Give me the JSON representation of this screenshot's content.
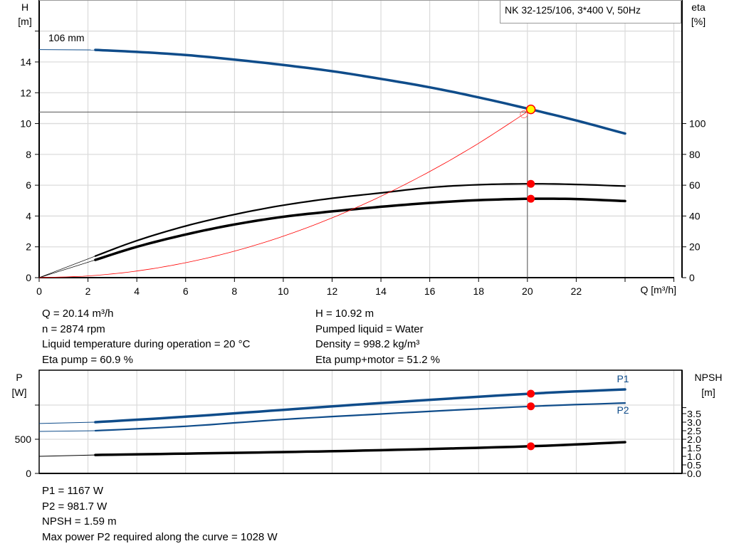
{
  "chart_data": [
    {
      "type": "line",
      "title": "NK 32-125/106, 3*400 V, 50Hz",
      "xlabel": "Q [m³/h]",
      "ylabel": "H\n[m]",
      "ylabel_lines": [
        "H",
        "[m]"
      ],
      "y2label_lines": [
        "eta",
        "[%]"
      ],
      "xlim": [
        0,
        26
      ],
      "ylim": [
        0,
        18
      ],
      "y2lim": [
        0,
        180
      ],
      "xticks": [
        "0",
        "2",
        "4",
        "6",
        "8",
        "10",
        "12",
        "14",
        "16",
        "18",
        "20",
        "22"
      ],
      "yticks": [
        "0",
        "2",
        "4",
        "6",
        "8",
        "10",
        "12",
        "14"
      ],
      "y2ticks": [
        "0",
        "20",
        "40",
        "60",
        "80",
        "100"
      ],
      "grid": true,
      "curve_label": "106 mm",
      "series": [
        {
          "id": "head",
          "axis": "H",
          "color": "#0f4c8a",
          "x": [
            2.3,
            4,
            6,
            8,
            10,
            12,
            14,
            16,
            18,
            20.14,
            22,
            24
          ],
          "y": [
            14.78,
            14.65,
            14.45,
            14.15,
            13.8,
            13.4,
            12.9,
            12.35,
            11.7,
            10.92,
            10.2,
            9.35
          ],
          "extrapolated_start": [
            0,
            14.8
          ]
        },
        {
          "id": "eta-pump",
          "axis": "eta",
          "color": "#000000",
          "x": [
            2.3,
            4,
            6,
            8,
            10,
            12,
            14,
            16,
            18,
            20.14,
            22,
            24
          ],
          "y": [
            14,
            24,
            33.5,
            41,
            47,
            51.5,
            55,
            58.5,
            60.3,
            60.9,
            60.5,
            59.4
          ]
        },
        {
          "id": "eta-pump-motor",
          "axis": "eta",
          "color": "#000000",
          "x": [
            2.3,
            4,
            6,
            8,
            10,
            12,
            14,
            16,
            18,
            20.14,
            22,
            24
          ],
          "y": [
            11.5,
            20,
            28,
            34.5,
            39.5,
            43,
            46,
            48.5,
            50.3,
            51.2,
            51,
            49.7
          ]
        },
        {
          "id": "system-curve",
          "axis": "H",
          "color": "#ff0000",
          "x": [
            0,
            2,
            4,
            6,
            8,
            10,
            12,
            14,
            16,
            18,
            20.14
          ],
          "y": [
            0,
            0.11,
            0.43,
            0.97,
            1.72,
            2.69,
            3.88,
            5.28,
            6.89,
            8.72,
            10.92
          ]
        }
      ],
      "duty_point": {
        "Q": 20.14,
        "H": 10.92,
        "eta_pump": 60.9,
        "eta_pump_motor": 51.2
      }
    },
    {
      "type": "line",
      "ylabel_lines": [
        "P",
        "[W]"
      ],
      "y2label_lines": [
        "NPSH",
        "[m]"
      ],
      "xlim": [
        0,
        26
      ],
      "ylim": [
        0,
        1500
      ],
      "y2lim": [
        0,
        6.25
      ],
      "yticks": [
        "0",
        "500"
      ],
      "y2ticks": [
        "0.0",
        "0.5",
        "1.0",
        "1.5",
        "2.0",
        "2.5",
        "3.0",
        "3.5"
      ],
      "grid": true,
      "series": [
        {
          "id": "P1",
          "name": "P1",
          "axis": "P",
          "color": "#0f4c8a",
          "x": [
            0,
            2.3,
            6,
            10,
            14,
            20.14,
            24
          ],
          "y": [
            730,
            750,
            830,
            930,
            1030,
            1167,
            1229
          ]
        },
        {
          "id": "P2",
          "name": "P2",
          "axis": "P",
          "color": "#0f4c8a",
          "x": [
            0,
            2.3,
            6,
            10,
            14,
            20.14,
            24
          ],
          "y": [
            615,
            625,
            690,
            790,
            870,
            981.7,
            1030
          ]
        },
        {
          "id": "NPSH",
          "axis": "NPSH",
          "color": "#000000",
          "x": [
            0,
            2.3,
            6,
            10,
            14,
            20.14,
            24
          ],
          "y": [
            1.0,
            1.08,
            1.16,
            1.25,
            1.36,
            1.59,
            1.83
          ]
        }
      ],
      "duty_point": {
        "Q": 20.14,
        "P1": 1167,
        "P2": 981.7,
        "NPSH": 1.59
      }
    }
  ],
  "info_top_left": [
    "Q = 20.14 m³/h",
    "n = 2874 rpm",
    "Liquid temperature during operation = 20 °C",
    "Eta pump = 60.9 %"
  ],
  "info_top_right": [
    "H = 10.92 m",
    "Pumped liquid = Water",
    "Density = 998.2 kg/m³",
    "Eta pump+motor = 51.2 %"
  ],
  "info_bottom": [
    "P1 = 1167 W",
    "P2 = 981.7 W",
    "NPSH = 1.59 m",
    "Max power P2 required along the curve = 1028 W"
  ],
  "colors": {
    "curve_blue": "#0f4c8a",
    "duty_marker": "#ff0000",
    "duty_fill": "#ffff00",
    "grid": "#d3d3d3"
  }
}
